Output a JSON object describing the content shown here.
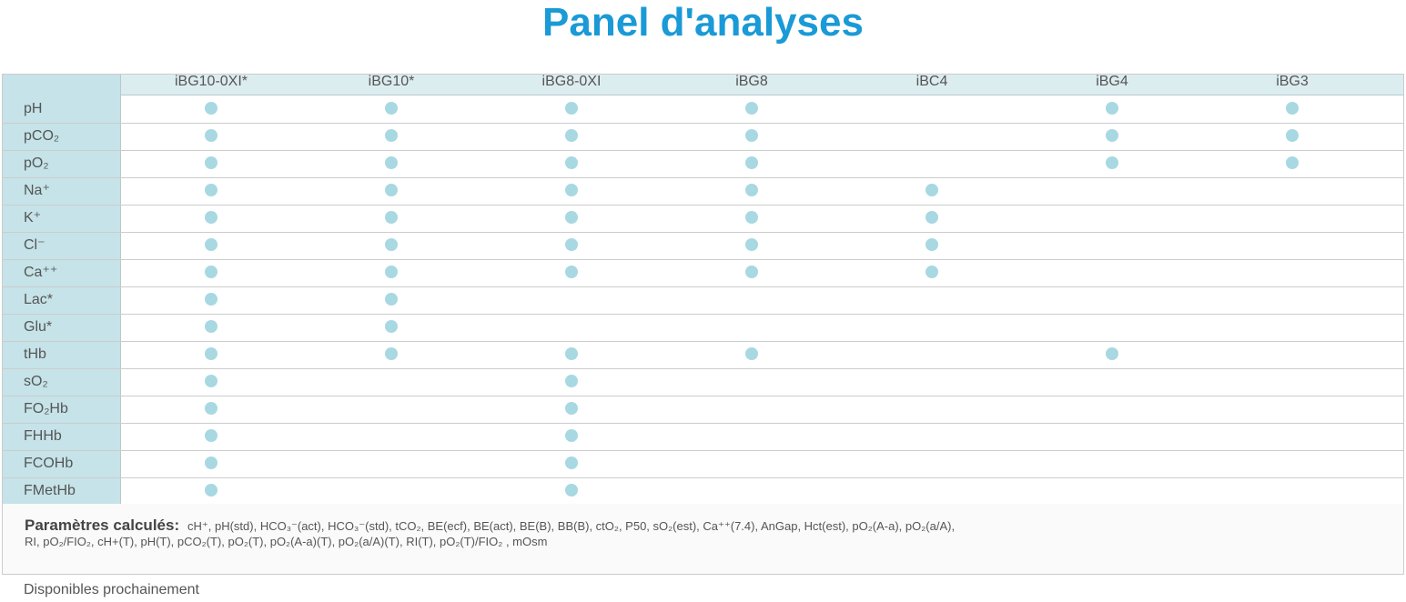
{
  "title": "Panel d'analyses",
  "table": {
    "columns": [
      "iBG10-0XI*",
      "iBG10*",
      "iBG8-0XI",
      "iBG8",
      "iBC4",
      "iBG4",
      "iBG3"
    ],
    "rows": [
      {
        "label": "pH",
        "cells": [
          true,
          true,
          true,
          true,
          false,
          true,
          true
        ]
      },
      {
        "label": "pCO₂",
        "cells": [
          true,
          true,
          true,
          true,
          false,
          true,
          true
        ]
      },
      {
        "label": "pO₂",
        "cells": [
          true,
          true,
          true,
          true,
          false,
          true,
          true
        ]
      },
      {
        "label": "Na⁺",
        "cells": [
          true,
          true,
          true,
          true,
          true,
          false,
          false
        ]
      },
      {
        "label": "K⁺",
        "cells": [
          true,
          true,
          true,
          true,
          true,
          false,
          false
        ]
      },
      {
        "label": "Cl⁻",
        "cells": [
          true,
          true,
          true,
          true,
          true,
          false,
          false
        ]
      },
      {
        "label": "Ca⁺⁺",
        "cells": [
          true,
          true,
          true,
          true,
          true,
          false,
          false
        ]
      },
      {
        "label": "Lac*",
        "cells": [
          true,
          true,
          false,
          false,
          false,
          false,
          false
        ]
      },
      {
        "label": "Glu*",
        "cells": [
          true,
          true,
          false,
          false,
          false,
          false,
          false
        ]
      },
      {
        "label": "tHb",
        "cells": [
          true,
          true,
          true,
          true,
          false,
          true,
          false
        ]
      },
      {
        "label": "sO₂",
        "cells": [
          true,
          false,
          true,
          false,
          false,
          false,
          false
        ]
      },
      {
        "label": "FO₂Hb",
        "cells": [
          true,
          false,
          true,
          false,
          false,
          false,
          false
        ]
      },
      {
        "label": "FHHb",
        "cells": [
          true,
          false,
          true,
          false,
          false,
          false,
          false
        ]
      },
      {
        "label": "FCOHb",
        "cells": [
          true,
          false,
          true,
          false,
          false,
          false,
          false
        ]
      },
      {
        "label": "FMetHb",
        "cells": [
          true,
          false,
          true,
          false,
          false,
          false,
          false
        ]
      }
    ]
  },
  "notes": {
    "label": "Paramètres calculés",
    "separator": ":",
    "lines": [
      "cH⁺, pH(std), HCO₃⁻(act), HCO₃⁻(std), tCO₂, BE(ecf), BE(act), BE(B), BB(B), ctO₂, P50, sO₂(est), Ca⁺⁺(7.4), AnGap, Hct(est), pO₂(A-a), pO₂(a/A),",
      "RI, pO₂/FIO₂, cH+(T), pH(T), pCO₂(T), pO₂(T), pO₂(A-a)(T), pO₂(a/A)(T), RI(T), pO₂(T)/FIO₂ , mOsm"
    ]
  },
  "footer": "Disponibles prochainement"
}
